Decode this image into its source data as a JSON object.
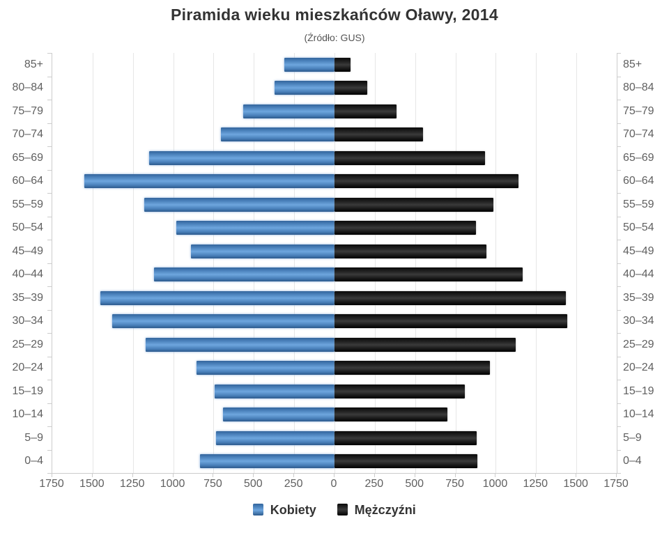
{
  "chart": {
    "title": "Piramida wieku mieszkańców Oławy, 2014",
    "subtitle": "(Źródło: GUS)"
  },
  "colors": {
    "women_bar": "#4e88c6",
    "men_bar": "#1a1a1a",
    "gridline": "#e6e6e6",
    "axis_line": "#cccccc",
    "axis_label": "#606060",
    "title_text": "#333333",
    "subtitle_text": "#555555",
    "background": "#ffffff"
  },
  "chart_data": {
    "type": "bar",
    "variant": "population-pyramid-horizontal",
    "title": "Piramida wieku mieszkańców Oławy, 2014",
    "subtitle": "(Źródło: GUS)",
    "categories": [
      "85+",
      "80–84",
      "75–79",
      "70–74",
      "65–69",
      "60–64",
      "55–59",
      "50–54",
      "45–49",
      "40–44",
      "35–39",
      "30–34",
      "25–29",
      "20–24",
      "15–19",
      "10–14",
      "5–9",
      "0–4"
    ],
    "series": [
      {
        "name": "Kobiety",
        "side": "left",
        "color": "#4e88c6",
        "values": [
          310,
          370,
          565,
          705,
          1150,
          1550,
          1180,
          980,
          890,
          1120,
          1450,
          1380,
          1170,
          855,
          745,
          690,
          735,
          835
        ]
      },
      {
        "name": "Mężczyźni",
        "side": "right",
        "color": "#1a1a1a",
        "values": [
          100,
          205,
          385,
          550,
          935,
          1140,
          985,
          875,
          940,
          1165,
          1435,
          1445,
          1125,
          965,
          810,
          700,
          880,
          885
        ]
      }
    ],
    "xlabel": "",
    "ylabel": "",
    "axis": {
      "xlim": [
        -1750,
        1750
      ],
      "tick_step": 250,
      "tick_labels": [
        "1750",
        "1500",
        "1250",
        "1000",
        "750",
        "500",
        "250",
        "0",
        "250",
        "500",
        "750",
        "1000",
        "1250",
        "1500",
        "1750"
      ],
      "tick_labels_absolute": true,
      "y_labels_both_sides": true
    },
    "grid": true,
    "legend_position": "bottom"
  }
}
